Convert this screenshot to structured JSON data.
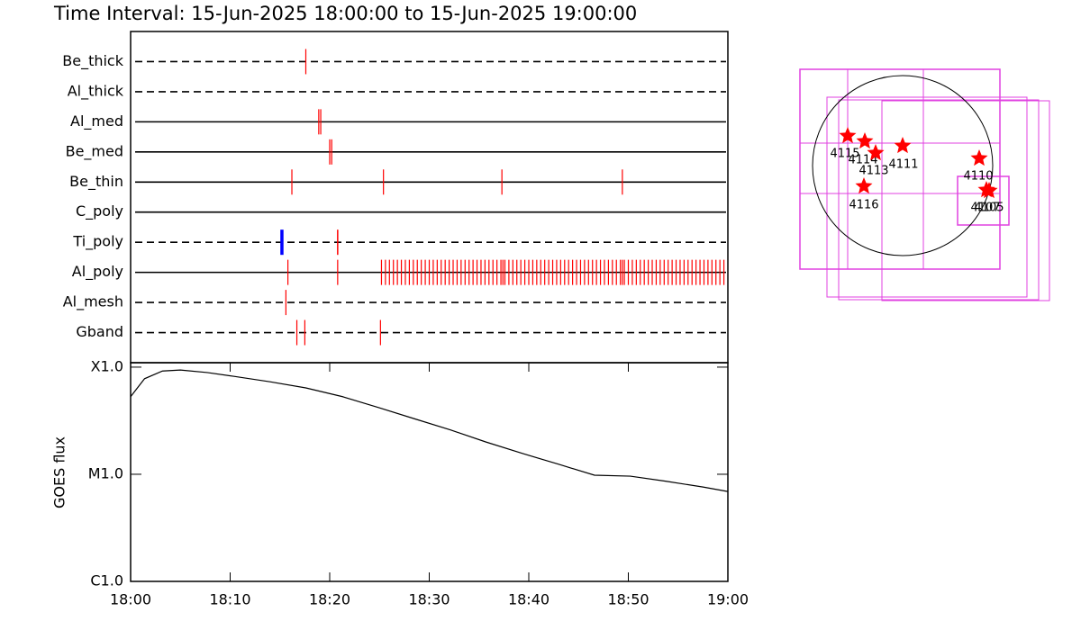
{
  "title": "Time Interval: 15-Jun-2025 18:00:00 to 15-Jun-2025 19:00:00",
  "chart_data": [
    {
      "type": "timeline",
      "xlim": [
        0,
        60
      ],
      "series": [
        {
          "name": "Be_thick",
          "line": "dashed",
          "color": "#ff0000",
          "values": [
            17.6
          ]
        },
        {
          "name": "Al_thick",
          "line": "dashed",
          "color": "#ff0000",
          "values": []
        },
        {
          "name": "Al_med",
          "line": "solid",
          "color": "#ff0000",
          "values": [
            18.9,
            19.1
          ]
        },
        {
          "name": "Be_med",
          "line": "solid",
          "color": "#ff0000",
          "values": [
            20.0,
            20.2
          ]
        },
        {
          "name": "Be_thin",
          "line": "solid",
          "color": "#ff0000",
          "values": [
            16.2,
            25.4,
            37.3,
            49.4
          ]
        },
        {
          "name": "C_poly",
          "line": "solid",
          "color": "#ff0000",
          "values": []
        },
        {
          "name": "Ti_poly",
          "line": "dashed",
          "color": "#ff0000",
          "colors": [
            "#0000ff",
            "#ff0000"
          ],
          "values": [
            15.2,
            20.8
          ]
        },
        {
          "name": "Al_poly",
          "line": "solid",
          "color": "#ff0000",
          "values": [
            15.8,
            20.8,
            25.2,
            25.6,
            26.0,
            26.4,
            26.8,
            27.2,
            27.6,
            28.0,
            28.4,
            28.8,
            29.2,
            29.6,
            30.0,
            30.4,
            30.8,
            31.2,
            31.6,
            32.0,
            32.4,
            32.8,
            33.2,
            33.6,
            34.0,
            34.4,
            34.8,
            35.2,
            35.6,
            36.0,
            36.4,
            36.8,
            37.2,
            37.4,
            37.6,
            38.0,
            38.4,
            38.8,
            39.2,
            39.6,
            40.0,
            40.4,
            40.8,
            41.2,
            41.6,
            42.0,
            42.4,
            42.8,
            43.2,
            43.6,
            44.0,
            44.4,
            44.8,
            45.2,
            45.6,
            46.0,
            46.4,
            46.8,
            47.2,
            47.6,
            48.0,
            48.4,
            48.8,
            49.2,
            49.4,
            49.6,
            50.0,
            50.4,
            50.8,
            51.2,
            51.6,
            52.0,
            52.4,
            52.8,
            53.2,
            53.6,
            54.0,
            54.4,
            54.8,
            55.2,
            55.6,
            56.0,
            56.4,
            56.8,
            57.2,
            57.6,
            58.0,
            58.4,
            58.8,
            59.2,
            59.6
          ]
        },
        {
          "name": "Al_mesh",
          "line": "dashed",
          "color": "#ff0000",
          "values": [
            15.6
          ]
        },
        {
          "name": "Gband",
          "line": "dashed",
          "color": "#ff0000",
          "values": [
            16.7,
            17.5,
            25.1
          ]
        }
      ]
    },
    {
      "type": "line",
      "ylabel": "GOES flux",
      "color": "#000000",
      "log_y": true,
      "x": [
        0,
        1.4,
        3.2,
        5.0,
        7.7,
        10.4,
        14.0,
        17.6,
        21.3,
        24.9,
        28.5,
        32.1,
        35.7,
        39.4,
        43.0,
        46.6,
        50.2,
        53.8,
        57.5,
        60.0
      ],
      "values": [
        5.3e-05,
        7.8e-05,
        9.2e-05,
        9.4e-05,
        8.9e-05,
        8.2e-05,
        7.3e-05,
        6.4e-05,
        5.3e-05,
        4.2e-05,
        3.3e-05,
        2.6e-05,
        2e-05,
        1.56e-05,
        1.24e-05,
        9.8e-06,
        9.6e-06,
        8.6e-06,
        7.6e-06,
        6.9e-06
      ],
      "xlim": [
        0,
        60
      ],
      "xticks": [
        {
          "value": 0,
          "label": "18:00"
        },
        {
          "value": 10,
          "label": "18:10"
        },
        {
          "value": 20,
          "label": "18:20"
        },
        {
          "value": 30,
          "label": "18:30"
        },
        {
          "value": 40,
          "label": "18:40"
        },
        {
          "value": 50,
          "label": "18:50"
        },
        {
          "value": 60,
          "label": "19:00"
        }
      ],
      "ylim": [
        1e-06,
        0.00011
      ],
      "yticks": [
        {
          "value": 1e-06,
          "label": "C1.0"
        },
        {
          "value": 1e-05,
          "label": "M1.0"
        },
        {
          "value": 0.0001,
          "label": "X1.0"
        }
      ]
    }
  ],
  "map": {
    "regions": [
      {
        "label": "4115"
      },
      {
        "label": "4114"
      },
      {
        "label": "4113"
      },
      {
        "label": "4111"
      },
      {
        "label": "4110"
      },
      {
        "label": "4116"
      },
      {
        "label": "4107"
      },
      {
        "label": "4105"
      }
    ]
  }
}
